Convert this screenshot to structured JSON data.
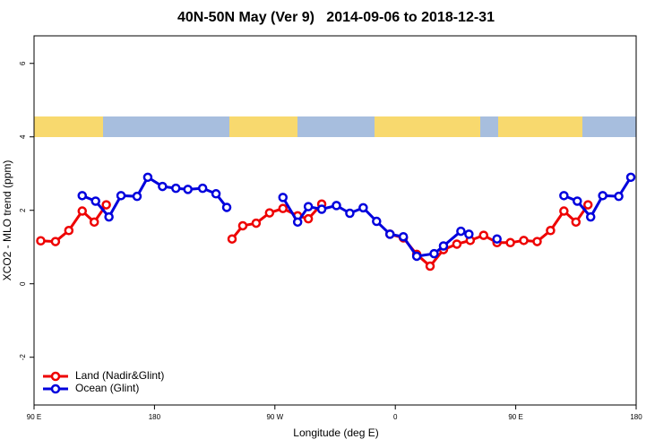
{
  "chart_data": {
    "type": "line",
    "title": "40N-50N May (Ver 9)   2014-09-06 to 2018-12-31",
    "x_label": "Longitude (deg E)",
    "y_label": "XCO2 - MLO trend (ppm)",
    "xlim": [
      90,
      540
    ],
    "xticks": [
      {
        "value": 90,
        "label": "90 E"
      },
      {
        "value": 180,
        "label": "180"
      },
      {
        "value": 270,
        "label": "90 W"
      },
      {
        "value": 360,
        "label": "0"
      },
      {
        "value": 450,
        "label": "90 E"
      },
      {
        "value": 540,
        "label": "180"
      }
    ],
    "ylim": [
      -3.3,
      6.75
    ],
    "yticks": [
      -2,
      0,
      2,
      4,
      6
    ],
    "legend": "bottomleft",
    "series": [
      {
        "name": "Land (Nadir&Glint)",
        "color": "#ee0000",
        "x": [
          95,
          106,
          116,
          126,
          135,
          144,
          null,
          238,
          246,
          256,
          266,
          276,
          287,
          295,
          305,
          null,
          356,
          366,
          376,
          386,
          396,
          406,
          416,
          426,
          436,
          446,
          456,
          466,
          476,
          486,
          495,
          504
        ],
        "values": [
          1.17,
          1.15,
          1.45,
          1.98,
          1.68,
          2.15,
          null,
          1.22,
          1.58,
          1.65,
          1.93,
          2.05,
          1.85,
          1.77,
          2.17,
          null,
          1.35,
          1.25,
          0.8,
          0.48,
          0.93,
          1.08,
          1.18,
          1.32,
          1.12,
          1.12,
          1.18,
          1.15,
          1.45,
          1.98,
          1.68,
          2.15
        ]
      },
      {
        "name": "Ocean (Glint)",
        "color": "#0000dd",
        "x": [
          126,
          136,
          146,
          155,
          167,
          175,
          186,
          196,
          205,
          216,
          226,
          234,
          null,
          276,
          287,
          295,
          305,
          316,
          326,
          336,
          346,
          356,
          366,
          376,
          389,
          396,
          409,
          415,
          null,
          436,
          null,
          486,
          496,
          506,
          515,
          527,
          536
        ],
        "values": [
          2.4,
          2.25,
          1.82,
          2.4,
          2.38,
          2.9,
          2.65,
          2.6,
          2.57,
          2.6,
          2.45,
          2.08,
          null,
          2.35,
          1.68,
          2.1,
          2.03,
          2.13,
          1.92,
          2.07,
          1.7,
          1.35,
          1.28,
          0.75,
          0.82,
          1.03,
          1.43,
          1.35,
          null,
          1.22,
          null,
          2.4,
          2.25,
          1.82,
          2.4,
          2.38,
          2.9
        ]
      }
    ]
  }
}
